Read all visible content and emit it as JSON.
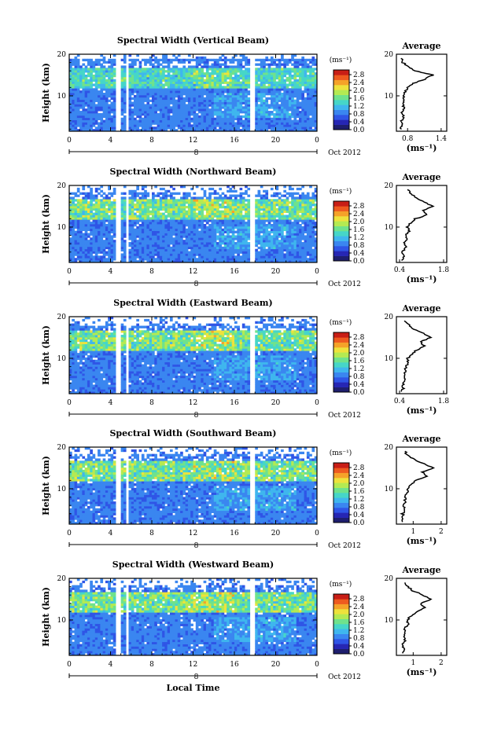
{
  "figure": {
    "xlabel": "Local Time",
    "ylabel": "Height (km)",
    "date_label": "Oct 2012",
    "day_label": "8",
    "colorbar_unit": "(ms⁻¹)",
    "colorbar_ticks": [
      "0.0",
      "0.4",
      "0.8",
      "1.2",
      "1.6",
      "2.0",
      "2.4",
      "2.8"
    ],
    "avg_title": "Average",
    "avg_xlabel": "(ms⁻¹)",
    "palette": [
      "#1e1e6e",
      "#2626b4",
      "#2f55e6",
      "#3a86f0",
      "#3fb6ee",
      "#46d6c8",
      "#6fe28c",
      "#b4ea52",
      "#eee23c",
      "#f5a229",
      "#ee5a1f",
      "#c81e16"
    ]
  },
  "chart_data": [
    {
      "type": "heatmap",
      "title": "Spectral Width (Vertical Beam)",
      "x_ticks": [
        "0",
        "4",
        "8",
        "12",
        "16",
        "20",
        "0"
      ],
      "xlim": [
        0,
        24
      ],
      "y_ticks": [
        "20",
        "10"
      ],
      "ylim": [
        1.5,
        20
      ],
      "avg_x_ticks": [
        "0.8",
        "1.4"
      ],
      "avg_xlim": [
        0.6,
        1.5
      ],
      "avg_profile": [
        [
          0.68,
          2
        ],
        [
          0.7,
          3
        ],
        [
          0.69,
          4
        ],
        [
          0.72,
          5
        ],
        [
          0.7,
          6
        ],
        [
          0.73,
          7
        ],
        [
          0.71,
          8
        ],
        [
          0.74,
          9
        ],
        [
          0.72,
          10
        ],
        [
          0.76,
          11
        ],
        [
          0.8,
          12
        ],
        [
          0.9,
          13
        ],
        [
          1.1,
          14
        ],
        [
          1.25,
          15
        ],
        [
          1.1,
          15.5
        ],
        [
          0.95,
          16
        ],
        [
          0.8,
          17
        ],
        [
          0.72,
          18
        ],
        [
          0.68,
          19
        ]
      ]
    },
    {
      "type": "heatmap",
      "title": "Spectral Width (Northward Beam)",
      "x_ticks": [
        "0",
        "4",
        "8",
        "12",
        "16",
        "20",
        "0"
      ],
      "xlim": [
        0,
        24
      ],
      "y_ticks": [
        "20",
        "10"
      ],
      "ylim": [
        1.5,
        20
      ],
      "avg_x_ticks": [
        "0.4",
        "1.8"
      ],
      "avg_xlim": [
        0.3,
        1.9
      ],
      "avg_profile": [
        [
          0.5,
          2
        ],
        [
          0.55,
          3
        ],
        [
          0.48,
          4
        ],
        [
          0.6,
          5
        ],
        [
          0.55,
          6
        ],
        [
          0.62,
          7
        ],
        [
          0.58,
          8
        ],
        [
          0.7,
          9
        ],
        [
          0.65,
          10
        ],
        [
          0.75,
          11
        ],
        [
          0.9,
          12
        ],
        [
          1.3,
          13
        ],
        [
          1.15,
          14
        ],
        [
          1.45,
          15
        ],
        [
          1.2,
          16
        ],
        [
          0.95,
          17
        ],
        [
          0.75,
          18
        ],
        [
          0.65,
          19
        ]
      ]
    },
    {
      "type": "heatmap",
      "title": "Spectral Width (Eastward Beam)",
      "x_ticks": [
        "0",
        "4",
        "8",
        "12",
        "16",
        "20",
        "0"
      ],
      "xlim": [
        0,
        24
      ],
      "y_ticks": [
        "20",
        "10"
      ],
      "ylim": [
        1.5,
        20
      ],
      "avg_x_ticks": [
        "0.4",
        "1.8"
      ],
      "avg_xlim": [
        0.3,
        1.9
      ],
      "avg_profile": [
        [
          0.48,
          2
        ],
        [
          0.52,
          3
        ],
        [
          0.5,
          4
        ],
        [
          0.56,
          5
        ],
        [
          0.54,
          6
        ],
        [
          0.6,
          7
        ],
        [
          0.58,
          8
        ],
        [
          0.68,
          9
        ],
        [
          0.66,
          10
        ],
        [
          0.78,
          11
        ],
        [
          0.95,
          12
        ],
        [
          1.2,
          13
        ],
        [
          1.05,
          14
        ],
        [
          1.4,
          15
        ],
        [
          1.15,
          16
        ],
        [
          0.85,
          17
        ],
        [
          0.7,
          18
        ],
        [
          0.55,
          19
        ]
      ]
    },
    {
      "type": "heatmap",
      "title": "Spectral Width (Southward Beam)",
      "x_ticks": [
        "0",
        "4",
        "8",
        "12",
        "16",
        "20",
        "0"
      ],
      "xlim": [
        0,
        24
      ],
      "y_ticks": [
        "20",
        "10"
      ],
      "ylim": [
        1.5,
        20
      ],
      "avg_x_ticks": [
        "1",
        "2"
      ],
      "avg_xlim": [
        0.4,
        2.2
      ],
      "avg_profile": [
        [
          0.6,
          2
        ],
        [
          0.65,
          3
        ],
        [
          0.62,
          4
        ],
        [
          0.7,
          5
        ],
        [
          0.66,
          6
        ],
        [
          0.72,
          7
        ],
        [
          0.7,
          8
        ],
        [
          0.8,
          9
        ],
        [
          0.78,
          10
        ],
        [
          0.9,
          11
        ],
        [
          1.1,
          12
        ],
        [
          1.5,
          13
        ],
        [
          1.3,
          14
        ],
        [
          1.7,
          15
        ],
        [
          1.4,
          16
        ],
        [
          1.05,
          17
        ],
        [
          0.8,
          18
        ],
        [
          0.7,
          19
        ]
      ]
    },
    {
      "type": "heatmap",
      "title": "Spectral Width (Westward Beam)",
      "x_ticks": [
        "0",
        "4",
        "8",
        "12",
        "16",
        "20",
        "0"
      ],
      "xlim": [
        0,
        24
      ],
      "y_ticks": [
        "20",
        "10"
      ],
      "ylim": [
        1.5,
        20
      ],
      "avg_x_ticks": [
        "1",
        "2"
      ],
      "avg_xlim": [
        0.4,
        2.2
      ],
      "avg_profile": [
        [
          0.6,
          2
        ],
        [
          0.66,
          3
        ],
        [
          0.62,
          4
        ],
        [
          0.72,
          5
        ],
        [
          0.68,
          6
        ],
        [
          0.74,
          7
        ],
        [
          0.7,
          8
        ],
        [
          0.82,
          9
        ],
        [
          0.8,
          10
        ],
        [
          0.92,
          11
        ],
        [
          1.12,
          12
        ],
        [
          1.45,
          13
        ],
        [
          1.25,
          14
        ],
        [
          1.65,
          15
        ],
        [
          1.35,
          16
        ],
        [
          1.0,
          17
        ],
        [
          0.8,
          18
        ],
        [
          0.7,
          19
        ]
      ]
    }
  ]
}
